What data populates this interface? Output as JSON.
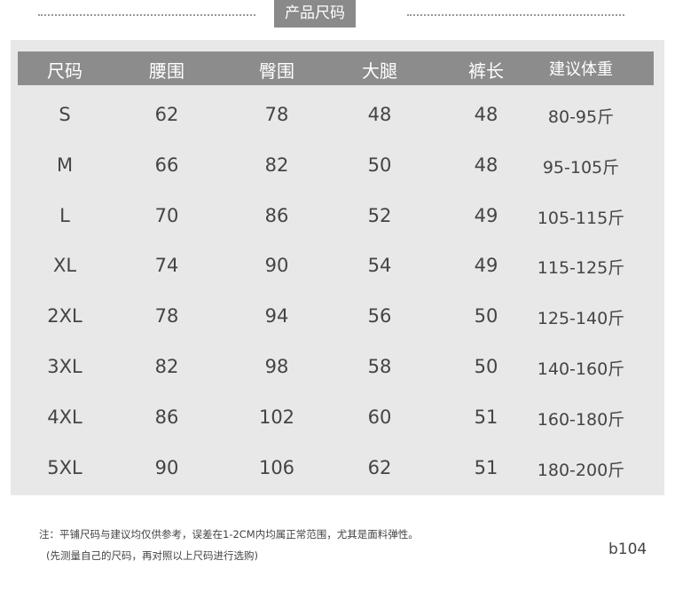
{
  "title": "产品尺码",
  "headers": [
    "尺码",
    "腰围",
    "臀围",
    "大腿",
    "裤长",
    "建议体重"
  ],
  "rows": [
    [
      "S",
      "62",
      "78",
      "48",
      "48",
      "80-95斤"
    ],
    [
      "M",
      "66",
      "82",
      "50",
      "48",
      "95-105斤"
    ],
    [
      "L",
      "70",
      "86",
      "52",
      "49",
      "105-115斤"
    ],
    [
      "XL",
      "74",
      "90",
      "54",
      "49",
      "115-125斤"
    ],
    [
      "2XL",
      "78",
      "94",
      "56",
      "50",
      "125-140斤"
    ],
    [
      "3XL",
      "82",
      "98",
      "58",
      "50",
      "140-160斤"
    ],
    [
      "4XL",
      "86",
      "102",
      "60",
      "51",
      "160-180斤"
    ],
    [
      "5XL",
      "90",
      "106",
      "62",
      "51",
      "180-200斤"
    ]
  ],
  "notes": [
    "注：平铺尺码与建议均仅供参考，误差在1-2CM内均属正常范围，尤其是面料弹性。",
    "(先测量自己的尺码，再对照以上尺码进行选购)"
  ],
  "code": "b104",
  "colors": {
    "header_bg": "#8c8c8c",
    "panel_bg": "#e8e8e8",
    "text": "#444444"
  }
}
